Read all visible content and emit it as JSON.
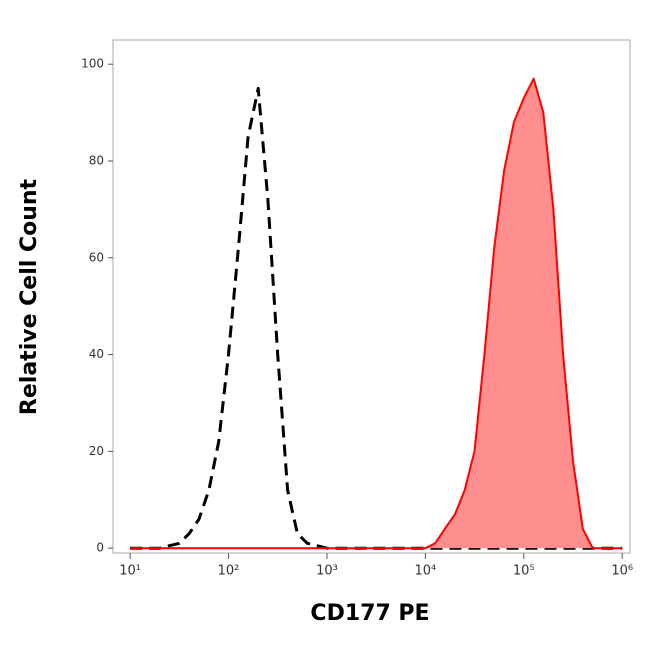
{
  "chart_data": {
    "type": "histogram-line",
    "xlabel": "CD177 PE",
    "ylabel": "Relative Cell Count",
    "x": [
      10,
      12.6,
      15.8,
      20,
      25.1,
      31.6,
      39.8,
      50.1,
      63.1,
      79.4,
      100,
      126,
      158,
      200,
      251,
      316,
      398,
      501,
      631,
      794,
      1000,
      1260,
      1580,
      2000,
      2510,
      3160,
      3980,
      5010,
      6310,
      7940,
      10000,
      12600,
      15800,
      20000,
      25100,
      31600,
      39800,
      50100,
      63100,
      79400,
      100000,
      126000,
      158000,
      200000,
      251000,
      316000,
      398000,
      501000,
      631000,
      794000,
      1000000
    ],
    "series": [
      {
        "color": "#000000",
        "dashed": true,
        "filled": false,
        "values": [
          0,
          0,
          0,
          0,
          0.5,
          1,
          3,
          6,
          12,
          22,
          40,
          62,
          85,
          95,
          72,
          40,
          12,
          3,
          1,
          0.5,
          0,
          0,
          0,
          0,
          0,
          0,
          0,
          0,
          0,
          0,
          0,
          0,
          0,
          0,
          0,
          0,
          0,
          0,
          0,
          0,
          0,
          0,
          0,
          0,
          0,
          0,
          0,
          0,
          0,
          0,
          0
        ]
      },
      {
        "color": "#ff0000",
        "fill": "#ff8f8f",
        "dashed": false,
        "filled": true,
        "values": [
          0,
          0,
          0,
          0,
          0,
          0,
          0,
          0,
          0,
          0,
          0,
          0,
          0,
          0,
          0,
          0,
          0,
          0,
          0,
          0,
          0,
          0,
          0,
          0,
          0,
          0,
          0,
          0,
          0,
          0,
          0,
          1,
          4,
          7,
          12,
          20,
          40,
          62,
          78,
          88,
          93,
          97,
          90,
          70,
          40,
          18,
          4,
          0,
          0,
          0,
          0
        ]
      }
    ],
    "xscale": "log",
    "xlim": [
      6.7,
      1200000
    ],
    "xticks": [
      {
        "value": 10,
        "label": "10¹"
      },
      {
        "value": 100,
        "label": "10²"
      },
      {
        "value": 1000,
        "label": "10³"
      },
      {
        "value": 10000,
        "label": "10⁴"
      },
      {
        "value": 100000,
        "label": "10⁵"
      },
      {
        "value": 1000000,
        "label": "10⁶"
      }
    ],
    "ylim": [
      -1,
      105
    ],
    "yticks": [
      0,
      20,
      40,
      60,
      80,
      100
    ]
  }
}
